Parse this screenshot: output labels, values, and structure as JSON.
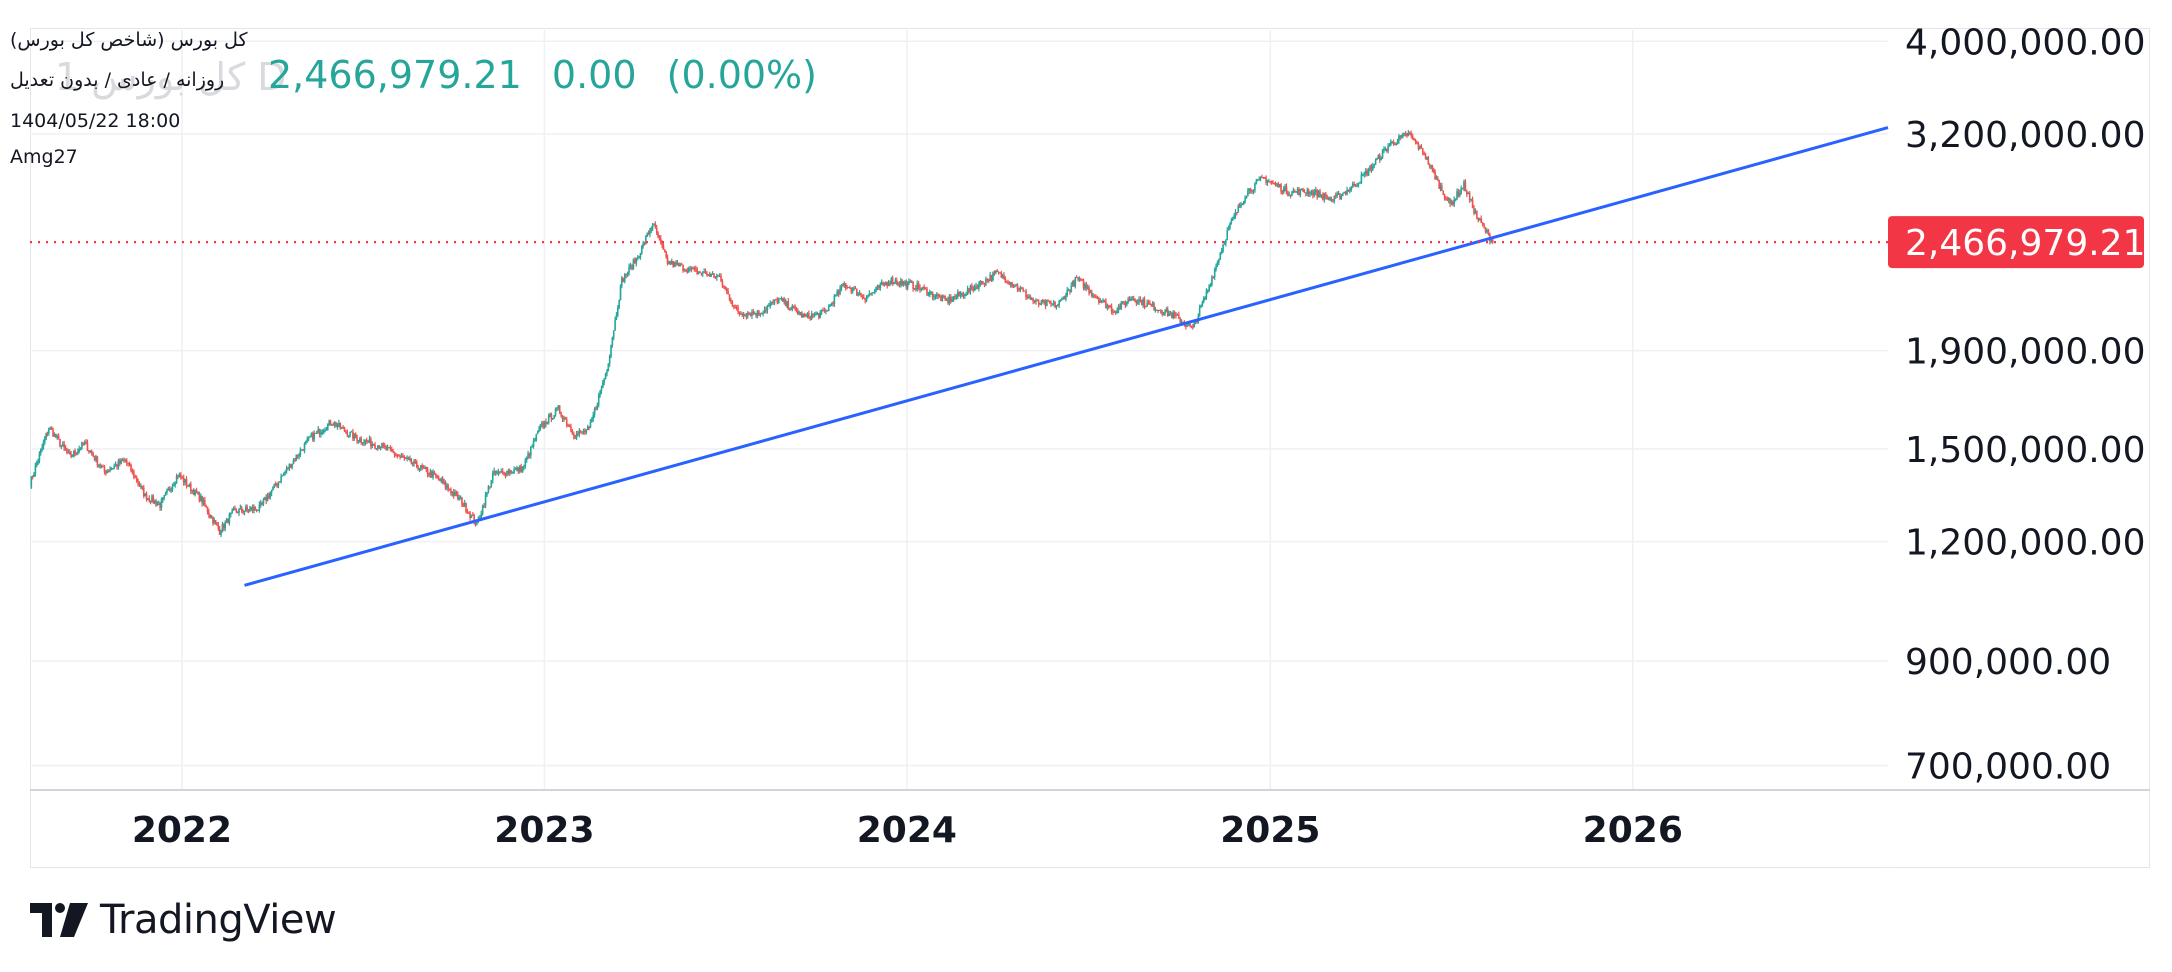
{
  "colors": {
    "up": "#26a69a",
    "down": "#ef5350",
    "trendline": "#2962ff",
    "last_price_line": "#f23645",
    "last_price_badge": "#f23645",
    "grid": "#eef0f4",
    "axis_text": "#131722",
    "watermark": "#d9d9de"
  },
  "legend": {
    "title": "کل بورس (شاخص کل بورس)",
    "interval": "روزانه / عادی / بدون تعدیل",
    "date": "1404/05/22 18:00",
    "author": "Amg27",
    "watermark": "1 کل بورس D",
    "last_value": "2,466,979.21",
    "change": "0.00",
    "change_pct": "(0.00%)"
  },
  "brand": {
    "name": "TradingView",
    "icon": "tradingview-logo-icon"
  },
  "chart_data": {
    "type": "candlestick",
    "title": "کل بورس (شاخص کل بورس)",
    "interval": "Daily",
    "y_scale": "log",
    "ylim": [
      650000,
      4200000
    ],
    "xlim": [
      "2021-08-01",
      "2026-09-15"
    ],
    "y_ticks": [
      {
        "value": 4000000,
        "label": "4,000,000.00"
      },
      {
        "value": 3200000,
        "label": "3,200,000.00"
      },
      {
        "value": 1900000,
        "label": "1,900,000.00"
      },
      {
        "value": 1500000,
        "label": "1,500,000.00"
      },
      {
        "value": 1200000,
        "label": "1,200,000.00"
      },
      {
        "value": 900000,
        "label": "900,000.00"
      },
      {
        "value": 700000,
        "label": "700,000.00"
      }
    ],
    "x_ticks": [
      {
        "date": "2022-01-01",
        "label": "2022"
      },
      {
        "date": "2023-01-01",
        "label": "2023"
      },
      {
        "date": "2024-01-01",
        "label": "2024"
      },
      {
        "date": "2025-01-01",
        "label": "2025"
      },
      {
        "date": "2026-01-01",
        "label": "2026"
      }
    ],
    "grid": true,
    "last_price": {
      "value": 2466979.21,
      "label": "2,466,979.21"
    },
    "trendline": {
      "start": {
        "date": "2022-03-05",
        "value": 1080000
      },
      "end": {
        "date": "2026-09-15",
        "value": 3250000
      }
    },
    "series": [
      {
        "values": [
          [
            "2021-08-01",
            1380000
          ],
          [
            "2021-08-20",
            1580000
          ],
          [
            "2021-09-10",
            1470000
          ],
          [
            "2021-09-25",
            1520000
          ],
          [
            "2021-10-15",
            1420000
          ],
          [
            "2021-11-05",
            1460000
          ],
          [
            "2021-11-25",
            1340000
          ],
          [
            "2021-12-10",
            1310000
          ],
          [
            "2021-12-28",
            1410000
          ],
          [
            "2022-01-20",
            1330000
          ],
          [
            "2022-02-08",
            1230000
          ],
          [
            "2022-02-22",
            1290000
          ],
          [
            "2022-03-20",
            1300000
          ],
          [
            "2022-04-15",
            1420000
          ],
          [
            "2022-05-10",
            1540000
          ],
          [
            "2022-06-01",
            1600000
          ],
          [
            "2022-06-25",
            1540000
          ],
          [
            "2022-07-20",
            1510000
          ],
          [
            "2022-08-20",
            1450000
          ],
          [
            "2022-09-15",
            1400000
          ],
          [
            "2022-10-10",
            1320000
          ],
          [
            "2022-10-25",
            1250000
          ],
          [
            "2022-11-10",
            1410000
          ],
          [
            "2022-12-10",
            1430000
          ],
          [
            "2022-12-28",
            1580000
          ],
          [
            "2023-01-15",
            1650000
          ],
          [
            "2023-02-01",
            1550000
          ],
          [
            "2023-02-15",
            1570000
          ],
          [
            "2023-03-05",
            1820000
          ],
          [
            "2023-03-20",
            2250000
          ],
          [
            "2023-04-05",
            2380000
          ],
          [
            "2023-04-20",
            2580000
          ],
          [
            "2023-05-05",
            2350000
          ],
          [
            "2023-06-01",
            2300000
          ],
          [
            "2023-06-25",
            2270000
          ],
          [
            "2023-07-15",
            2080000
          ],
          [
            "2023-08-05",
            2080000
          ],
          [
            "2023-08-25",
            2150000
          ],
          [
            "2023-09-20",
            2060000
          ],
          [
            "2023-10-10",
            2080000
          ],
          [
            "2023-10-30",
            2230000
          ],
          [
            "2023-11-20",
            2160000
          ],
          [
            "2023-12-15",
            2250000
          ],
          [
            "2024-01-10",
            2220000
          ],
          [
            "2024-02-10",
            2140000
          ],
          [
            "2024-03-05",
            2200000
          ],
          [
            "2024-04-01",
            2290000
          ],
          [
            "2024-04-20",
            2220000
          ],
          [
            "2024-05-10",
            2130000
          ],
          [
            "2024-06-01",
            2120000
          ],
          [
            "2024-06-20",
            2260000
          ],
          [
            "2024-07-08",
            2170000
          ],
          [
            "2024-07-28",
            2090000
          ],
          [
            "2024-08-15",
            2160000
          ],
          [
            "2024-09-10",
            2100000
          ],
          [
            "2024-09-28",
            2060000
          ],
          [
            "2024-10-15",
            2000000
          ],
          [
            "2024-10-30",
            2200000
          ],
          [
            "2024-11-20",
            2550000
          ],
          [
            "2024-12-08",
            2780000
          ],
          [
            "2024-12-25",
            2880000
          ],
          [
            "2025-01-20",
            2780000
          ],
          [
            "2025-02-10",
            2790000
          ],
          [
            "2025-03-05",
            2730000
          ],
          [
            "2025-03-25",
            2820000
          ],
          [
            "2025-04-10",
            2930000
          ],
          [
            "2025-05-01",
            3120000
          ],
          [
            "2025-05-20",
            3200000
          ],
          [
            "2025-06-05",
            3050000
          ],
          [
            "2025-06-20",
            2830000
          ],
          [
            "2025-07-01",
            2700000
          ],
          [
            "2025-07-15",
            2830000
          ],
          [
            "2025-07-28",
            2620000
          ],
          [
            "2025-08-13",
            2466979
          ]
        ]
      }
    ]
  }
}
